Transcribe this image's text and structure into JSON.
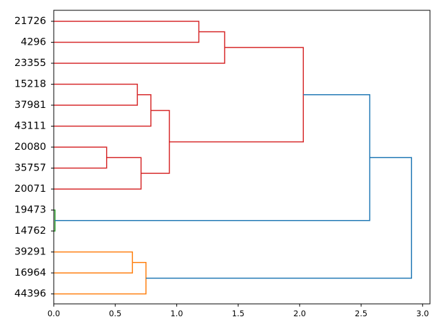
{
  "chart_data": {
    "type": "dendrogram",
    "orientation": "horizontal",
    "title": "",
    "xlabel": "",
    "ylabel": "",
    "xlim": [
      0,
      3.06
    ],
    "xticks": [
      {
        "value": 0.0,
        "label": "0.0"
      },
      {
        "value": 0.5,
        "label": "0.5"
      },
      {
        "value": 1.0,
        "label": "1.0"
      },
      {
        "value": 1.5,
        "label": "1.5"
      },
      {
        "value": 2.0,
        "label": "2.0"
      },
      {
        "value": 2.5,
        "label": "2.5"
      },
      {
        "value": 3.0,
        "label": "3.0"
      }
    ],
    "leaves": [
      "21726",
      "4296",
      "23355",
      "15218",
      "37981",
      "43111",
      "20080",
      "35757",
      "20071",
      "19473",
      "14762",
      "39291",
      "16964",
      "44396"
    ],
    "merges": [
      {
        "left": "L0",
        "right": "L1",
        "height": 1.18,
        "color": "#d62728"
      },
      {
        "left": "M0",
        "right": "L2",
        "height": 1.39,
        "color": "#d62728"
      },
      {
        "left": "L3",
        "right": "L4",
        "height": 0.68,
        "color": "#d62728"
      },
      {
        "left": "M2",
        "right": "L5",
        "height": 0.79,
        "color": "#d62728"
      },
      {
        "left": "L6",
        "right": "L7",
        "height": 0.43,
        "color": "#d62728"
      },
      {
        "left": "M4",
        "right": "L8",
        "height": 0.71,
        "color": "#d62728"
      },
      {
        "left": "M3",
        "right": "M5",
        "height": 0.94,
        "color": "#d62728"
      },
      {
        "left": "M1",
        "right": "M6",
        "height": 2.03,
        "color": "#d62728"
      },
      {
        "left": "L9",
        "right": "L10",
        "height": 0.01,
        "color": "#2ca02c"
      },
      {
        "left": "M7",
        "right": "M8",
        "height": 2.57,
        "color": "#1f77b4"
      },
      {
        "left": "L11",
        "right": "L12",
        "height": 0.64,
        "color": "#ff7f0e"
      },
      {
        "left": "M10",
        "right": "L13",
        "height": 0.75,
        "color": "#ff7f0e"
      },
      {
        "left": "M9",
        "right": "M11",
        "height": 2.91,
        "color": "#1f77b4"
      }
    ]
  }
}
